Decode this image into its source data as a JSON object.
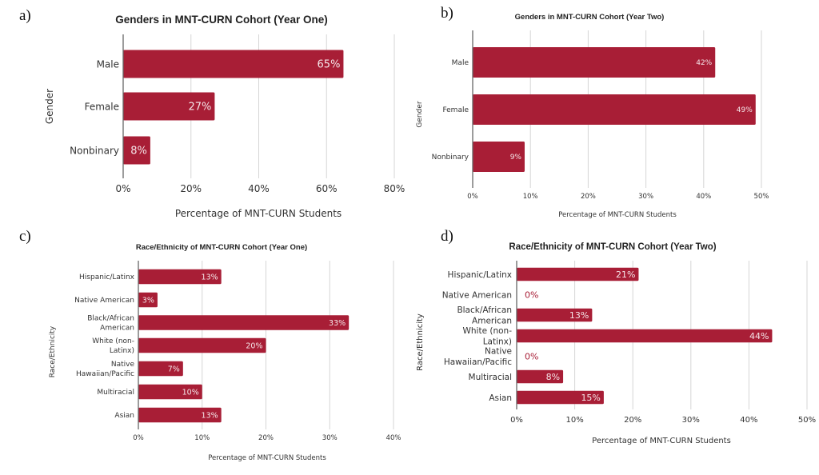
{
  "colors": {
    "bar": "#a81e36",
    "zero_label": "#a81e36",
    "inner_label": "#f5e6e9"
  },
  "chart_data": [
    {
      "id": "a",
      "panel_label": "a)",
      "type": "bar",
      "orientation": "horizontal",
      "title": "Genders in MNT-CURN Cohort (Year One)",
      "xlabel": "Percentage of MNT-CURN Students",
      "ylabel": "Gender",
      "categories": [
        "Male",
        "Female",
        "Nonbinary"
      ],
      "values": [
        65,
        27,
        8
      ],
      "data_labels": [
        "65%",
        "27%",
        "8%"
      ],
      "xlim": [
        0,
        80
      ],
      "xticks": [
        0,
        20,
        40,
        60,
        80
      ],
      "xtick_labels": [
        "0%",
        "20%",
        "40%",
        "60%",
        "80%"
      ],
      "grid": "vertical"
    },
    {
      "id": "b",
      "panel_label": "b)",
      "type": "bar",
      "orientation": "horizontal",
      "title": "Genders in MNT-CURN Cohort (Year Two)",
      "xlabel": "Percentage of MNT-CURN Students",
      "ylabel": "Gender",
      "categories": [
        "Male",
        "Female",
        "Nonbinary"
      ],
      "values": [
        42,
        49,
        9
      ],
      "data_labels": [
        "42%",
        "49%",
        "9%"
      ],
      "xlim": [
        0,
        50
      ],
      "xticks": [
        0,
        10,
        20,
        30,
        40,
        50
      ],
      "xtick_labels": [
        "0%",
        "10%",
        "20%",
        "30%",
        "40%",
        "50%"
      ],
      "grid": "vertical"
    },
    {
      "id": "c",
      "panel_label": "c)",
      "type": "bar",
      "orientation": "horizontal",
      "title": "Race/Ethnicity of MNT-CURN Cohort (Year One)",
      "xlabel": "Percentage of MNT-CURN Students",
      "ylabel": "Race/Ethnicity",
      "categories": [
        "Hispanic/Latinx",
        "Native American",
        "Black/African American",
        "White (non-Latinx)",
        "Native Hawaiian/Pacific",
        "Multiracial",
        "Asian"
      ],
      "category_lines": [
        [
          "Hispanic/Latinx"
        ],
        [
          "Native American"
        ],
        [
          "Black/African",
          "American"
        ],
        [
          "White (non-",
          "Latinx)"
        ],
        [
          "Native",
          "Hawaiian/Pacific"
        ],
        [
          "Multiracial"
        ],
        [
          "Asian"
        ]
      ],
      "values": [
        13,
        3,
        33,
        20,
        7,
        10,
        13
      ],
      "data_labels": [
        "13%",
        "3%",
        "33%",
        "20%",
        "7%",
        "10%",
        "13%"
      ],
      "xlim": [
        0,
        40
      ],
      "xticks": [
        0,
        10,
        20,
        30,
        40
      ],
      "xtick_labels": [
        "0%",
        "10%",
        "20%",
        "30%",
        "40%"
      ],
      "grid": "vertical"
    },
    {
      "id": "d",
      "panel_label": "d)",
      "type": "bar",
      "orientation": "horizontal",
      "title": "Race/Ethnicity of MNT-CURN Cohort (Year Two)",
      "xlabel": "Percentage of MNT-CURN Students",
      "ylabel": "Race/Ethnicity",
      "categories": [
        "Hispanic/Latinx",
        "Native American",
        "Black/African American",
        "White (non-Latinx)",
        "Native Hawaiian/Pacific",
        "Multiracial",
        "Asian"
      ],
      "category_lines": [
        [
          "Hispanic/Latinx"
        ],
        [
          "Native American"
        ],
        [
          "Black/African",
          "American"
        ],
        [
          "White (non-",
          "Latinx)"
        ],
        [
          "Native",
          "Hawaiian/Pacific"
        ],
        [
          "Multiracial"
        ],
        [
          "Asian"
        ]
      ],
      "values": [
        21,
        0,
        13,
        44,
        0,
        8,
        15
      ],
      "data_labels": [
        "21%",
        "0%",
        "13%",
        "44%",
        "0%",
        "8%",
        "15%"
      ],
      "xlim": [
        0,
        50
      ],
      "xticks": [
        0,
        10,
        20,
        30,
        40,
        50
      ],
      "xtick_labels": [
        "0%",
        "10%",
        "20%",
        "30%",
        "40%",
        "50%"
      ],
      "grid": "vertical"
    }
  ]
}
